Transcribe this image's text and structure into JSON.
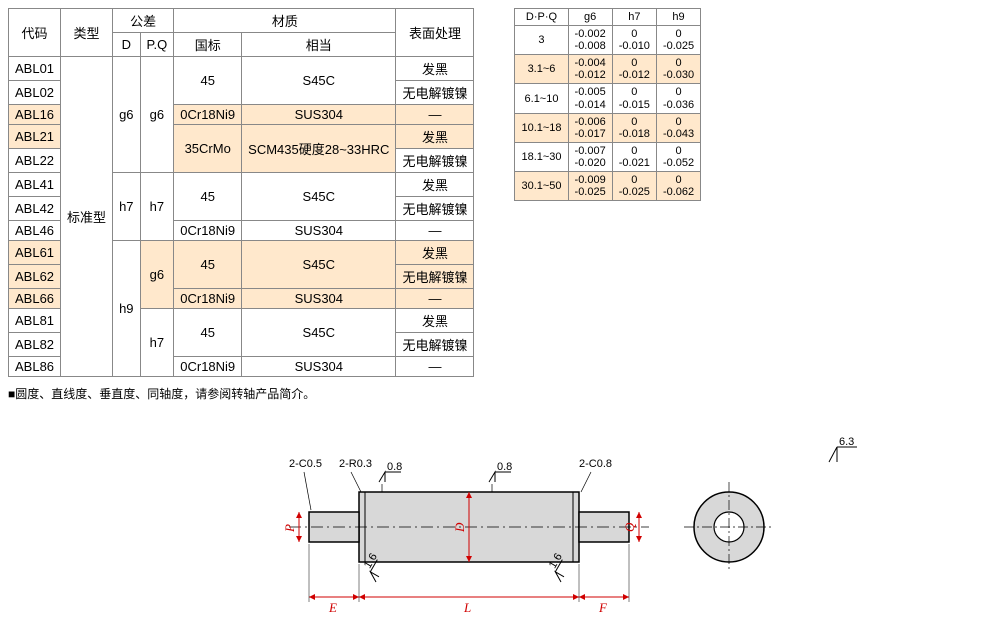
{
  "main_table": {
    "headers": {
      "code": "代码",
      "type": "类型",
      "tolerance": "公差",
      "tol_d": "D",
      "tol_pq": "P.Q",
      "material": "材质",
      "mat_gb": "国标",
      "mat_eq": "相当",
      "surface": "表面处理"
    },
    "type_value": "标准型",
    "codes": [
      "ABL01",
      "ABL02",
      "ABL16",
      "ABL21",
      "ABL22",
      "ABL41",
      "ABL42",
      "ABL46",
      "ABL61",
      "ABL62",
      "ABL66",
      "ABL81",
      "ABL82",
      "ABL86"
    ],
    "tol_d_vals": [
      "g6",
      "h7",
      "h9"
    ],
    "tol_pq_vals": [
      "g6",
      "h7",
      "g6",
      "h7"
    ],
    "mat_45": "45",
    "mat_s45c": "S45C",
    "mat_0cr": "0Cr18Ni9",
    "mat_sus": "SUS304",
    "mat_35crmo": "35CrMo",
    "mat_scm": "SCM435硬度28~33HRC",
    "surf_black": "发黑",
    "surf_ni": "无电解镀镍",
    "surf_dash": "—"
  },
  "tol_table": {
    "headers": {
      "dpq": "D·P·Q",
      "g6": "g6",
      "h7": "h7",
      "h9": "h9"
    },
    "rows": [
      {
        "range": "3",
        "g6_u": "-0.002",
        "g6_l": "-0.008",
        "h7_u": "0",
        "h7_l": "-0.010",
        "h9_u": "0",
        "h9_l": "-0.025",
        "hl": false
      },
      {
        "range": "3.1~6",
        "g6_u": "-0.004",
        "g6_l": "-0.012",
        "h7_u": "0",
        "h7_l": "-0.012",
        "h9_u": "0",
        "h9_l": "-0.030",
        "hl": true
      },
      {
        "range": "6.1~10",
        "g6_u": "-0.005",
        "g6_l": "-0.014",
        "h7_u": "0",
        "h7_l": "-0.015",
        "h9_u": "0",
        "h9_l": "-0.036",
        "hl": false
      },
      {
        "range": "10.1~18",
        "g6_u": "-0.006",
        "g6_l": "-0.017",
        "h7_u": "0",
        "h7_l": "-0.018",
        "h9_u": "0",
        "h9_l": "-0.043",
        "hl": true
      },
      {
        "range": "18.1~30",
        "g6_u": "-0.007",
        "g6_l": "-0.020",
        "h7_u": "0",
        "h7_l": "-0.021",
        "h9_u": "0",
        "h9_l": "-0.052",
        "hl": false
      },
      {
        "range": "30.1~50",
        "g6_u": "-0.009",
        "g6_l": "-0.025",
        "h7_u": "0",
        "h7_l": "-0.025",
        "h9_u": "0",
        "h9_l": "-0.062",
        "hl": true
      }
    ]
  },
  "note": "■圆度、直线度、垂直度、同轴度，请参阅转轴产品简介。",
  "diagram": {
    "labels": {
      "c05": "2-C0.5",
      "r03": "2-R0.3",
      "c08": "2-C0.8",
      "ra08": "0.8",
      "ra16": "1.6",
      "ra63": "6.3",
      "P": "P",
      "D": "D",
      "Q": "Q",
      "E": "E",
      "L": "L",
      "F": "F"
    },
    "colors": {
      "shaft_fill": "#d8d8d8",
      "shaft_stroke": "#000000",
      "centerline": "#000000",
      "dim_red": "#d00000",
      "dim_black": "#000000"
    }
  }
}
